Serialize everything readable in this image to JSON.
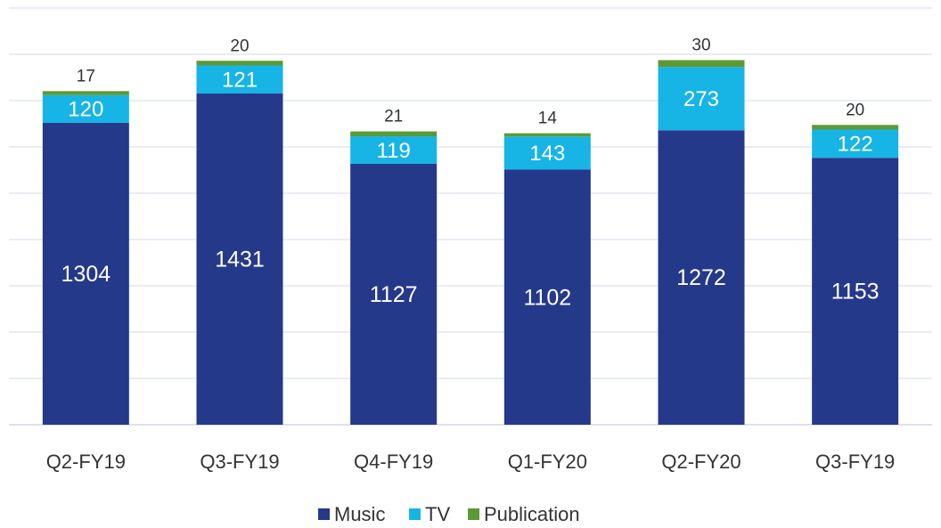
{
  "chart_data": {
    "type": "stacked_bar",
    "categories": [
      "Q2-FY19",
      "Q3-FY19",
      "Q4-FY19",
      "Q1-FY20",
      "Q2-FY20",
      "Q3-FY19"
    ],
    "series": [
      {
        "name": "Music",
        "color": "#25398a",
        "values": [
          1304,
          1431,
          1127,
          1102,
          1272,
          1153
        ]
      },
      {
        "name": "TV",
        "color": "#17b4e6",
        "values": [
          120,
          121,
          119,
          143,
          273,
          122
        ]
      },
      {
        "name": "Publication",
        "color": "#5b9a35",
        "values": [
          17,
          20,
          21,
          14,
          30,
          20
        ]
      }
    ],
    "ylim": [
      0,
      1800
    ],
    "yticks": [
      0,
      200,
      400,
      600,
      800,
      1000,
      1200,
      1400,
      1600,
      1800
    ],
    "grid": true,
    "legend": "bottom"
  }
}
